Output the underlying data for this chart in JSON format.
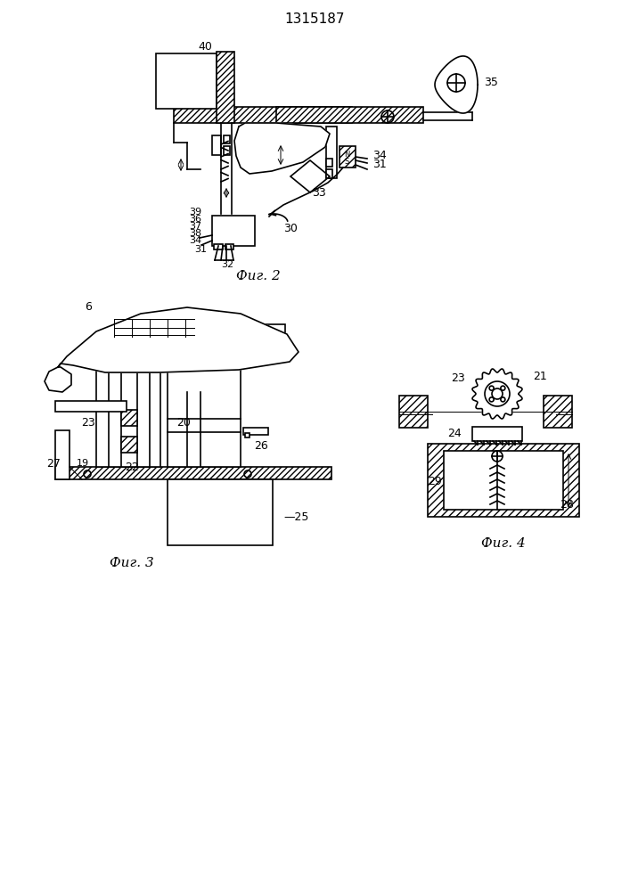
{
  "title": "1315187",
  "fig2_label": "Фиг. 2",
  "fig3_label": "Фиг. 3",
  "fig4_label": "Фиг. 4",
  "bg_color": "#ffffff",
  "line_color": "#000000",
  "line_width": 1.2,
  "thin_line": 0.7
}
